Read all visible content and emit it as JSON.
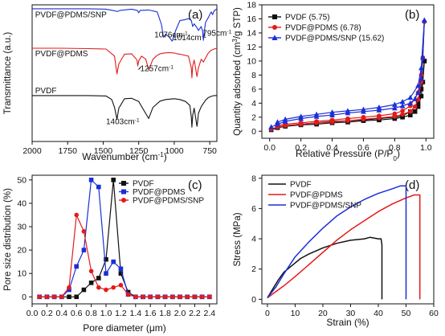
{
  "chart_data": [
    {
      "panel": "(a)",
      "type": "line",
      "xlabel": "Wavenumber (cm⁻¹)",
      "ylabel": "Transmittance (a.u.)",
      "xlim": [
        2000,
        700
      ],
      "x_reversed": true,
      "yticks_shown": false,
      "xticks": [
        2000,
        1750,
        1500,
        1250,
        1000,
        750
      ],
      "series": [
        {
          "name": "PVDF@PDMS/SNP",
          "color": "#1a2fd6",
          "offset": 2.2,
          "label_at": [
            1990,
            2.98
          ],
          "x": [
            2000,
            1800,
            1600,
            1480,
            1420,
            1400,
            1380,
            1300,
            1260,
            1250,
            1240,
            1180,
            1120,
            1090,
            1076,
            1060,
            1040,
            1014,
            990,
            960,
            930,
            900,
            880,
            870,
            860,
            840,
            830,
            810,
            800,
            795,
            790,
            780,
            760,
            740,
            730,
            720,
            710,
            700
          ],
          "y": [
            1.0,
            1.0,
            1.0,
            0.99,
            0.95,
            0.93,
            0.96,
            0.99,
            0.96,
            0.9,
            0.96,
            0.97,
            0.92,
            0.6,
            0.28,
            0.35,
            0.3,
            0.18,
            0.45,
            0.7,
            0.72,
            0.75,
            0.7,
            0.55,
            0.62,
            0.52,
            0.45,
            0.55,
            0.42,
            0.2,
            0.38,
            0.65,
            0.78,
            0.92,
            0.85,
            0.95,
            0.97,
            1.0
          ]
        },
        {
          "name": "PVDF@PDMS",
          "color": "#e41a1a",
          "offset": 1.2,
          "label_at": [
            1990,
            2.0
          ],
          "x": [
            2000,
            1800,
            1600,
            1480,
            1420,
            1403,
            1390,
            1350,
            1300,
            1262,
            1257,
            1250,
            1230,
            1200,
            1180,
            1150,
            1120,
            1100,
            1070,
            1040,
            1000,
            980,
            960,
            900,
            880,
            876,
            870,
            860,
            850,
            840,
            830,
            810,
            795,
            780,
            760,
            740,
            720,
            700
          ],
          "y": [
            1.0,
            1.0,
            0.99,
            0.98,
            0.8,
            0.35,
            0.6,
            0.85,
            0.86,
            0.7,
            0.55,
            0.68,
            0.8,
            0.72,
            0.45,
            0.72,
            0.82,
            0.86,
            0.88,
            0.89,
            0.88,
            0.86,
            0.85,
            0.8,
            0.5,
            0.25,
            0.55,
            0.7,
            0.5,
            0.28,
            0.5,
            0.72,
            0.65,
            0.75,
            0.88,
            0.95,
            0.98,
            1.0
          ]
        },
        {
          "name": "PVDF",
          "color": "#111111",
          "offset": 0.0,
          "label_at": [
            1990,
            1.06
          ],
          "x": [
            2000,
            1800,
            1600,
            1480,
            1440,
            1420,
            1403,
            1390,
            1350,
            1300,
            1250,
            1210,
            1180,
            1150,
            1100,
            1060,
            1000,
            960,
            920,
            890,
            880,
            876,
            870,
            860,
            850,
            840,
            835,
            830,
            810,
            795,
            780,
            760,
            740,
            720,
            700
          ],
          "y": [
            1.0,
            1.0,
            1.0,
            0.99,
            0.9,
            0.7,
            0.4,
            0.68,
            0.92,
            0.93,
            0.85,
            0.6,
            0.42,
            0.7,
            0.86,
            0.9,
            0.92,
            0.9,
            0.85,
            0.75,
            0.45,
            0.2,
            0.5,
            0.68,
            0.45,
            0.22,
            0.35,
            0.55,
            0.72,
            0.8,
            0.88,
            0.95,
            0.98,
            1.0,
            1.0
          ]
        }
      ],
      "annotations": [
        {
          "text": "1076cm⁻¹",
          "x": 1140,
          "y": 2.47
        },
        {
          "text": "1014cm⁻¹",
          "x": 1010,
          "y": 2.4
        },
        {
          "text": "795cm⁻¹",
          "x": 800,
          "y": 2.52
        },
        {
          "text": "1257cm⁻¹",
          "x": 1240,
          "y": 1.62
        },
        {
          "text": "1403cm⁻¹",
          "x": 1480,
          "y": 0.28
        }
      ]
    },
    {
      "panel": "(b)",
      "type": "line",
      "xlabel": "Relative Pressure (P/P₀)",
      "ylabel": "Quantity adsorbed (cm³/g STP)",
      "xlim": [
        -0.05,
        1.05
      ],
      "ylim": [
        -1,
        18
      ],
      "xticks": [
        0.0,
        0.2,
        0.4,
        0.6,
        0.8,
        1.0
      ],
      "yticks": [
        0,
        2,
        4,
        6,
        8,
        10,
        12,
        14,
        16,
        18
      ],
      "legend": "top-left",
      "series": [
        {
          "name": "PVDF (5.75)",
          "color": "#111111",
          "marker": "square",
          "adsorption": {
            "x": [
              0.01,
              0.05,
              0.1,
              0.2,
              0.3,
              0.4,
              0.5,
              0.6,
              0.7,
              0.8,
              0.85,
              0.9,
              0.93,
              0.95,
              0.97,
              0.98,
              0.99
            ],
            "y": [
              0.2,
              0.5,
              0.7,
              0.9,
              1.0,
              1.2,
              1.3,
              1.5,
              1.6,
              1.8,
              2.0,
              2.3,
              2.8,
              3.5,
              5.0,
              7.0,
              10.0
            ]
          },
          "desorption": {
            "x": [
              0.99,
              0.97,
              0.95,
              0.9,
              0.85,
              0.8,
              0.7,
              0.6,
              0.5,
              0.4,
              0.3,
              0.2,
              0.1,
              0.05
            ],
            "y": [
              10.0,
              6.0,
              4.0,
              2.8,
              2.2,
              2.0,
              1.8,
              1.6,
              1.5,
              1.4,
              1.2,
              1.0,
              0.8,
              0.6
            ]
          }
        },
        {
          "name": "PVDF@PDMS (6.78)",
          "color": "#e41a1a",
          "marker": "circle",
          "adsorption": {
            "x": [
              0.01,
              0.05,
              0.1,
              0.2,
              0.3,
              0.4,
              0.5,
              0.6,
              0.7,
              0.8,
              0.85,
              0.9,
              0.93,
              0.95,
              0.97,
              0.98,
              0.99
            ],
            "y": [
              0.3,
              0.6,
              0.8,
              1.0,
              1.2,
              1.3,
              1.5,
              1.7,
              1.9,
              2.1,
              2.4,
              2.8,
              3.5,
              4.5,
              7.0,
              10.5,
              15.6
            ]
          },
          "desorption": {
            "x": [
              0.99,
              0.97,
              0.95,
              0.9,
              0.85,
              0.8,
              0.7,
              0.6,
              0.5,
              0.4,
              0.3,
              0.2,
              0.1,
              0.05
            ],
            "y": [
              15.6,
              8.0,
              5.5,
              3.6,
              2.9,
              2.5,
              2.2,
              2.0,
              1.8,
              1.6,
              1.4,
              1.2,
              1.0,
              0.8
            ]
          }
        },
        {
          "name": "PVDF@PDMS/SNP (15.62)",
          "color": "#1a2fd6",
          "marker": "triangle",
          "adsorption": {
            "x": [
              0.01,
              0.05,
              0.1,
              0.2,
              0.3,
              0.4,
              0.5,
              0.6,
              0.7,
              0.8,
              0.85,
              0.9,
              0.93,
              0.95,
              0.97,
              0.98,
              0.99
            ],
            "y": [
              0.6,
              1.0,
              1.4,
              1.8,
              2.1,
              2.3,
              2.6,
              2.8,
              3.0,
              3.3,
              3.6,
              4.0,
              4.6,
              5.5,
              7.5,
              10.5,
              15.8
            ]
          },
          "desorption": {
            "x": [
              0.99,
              0.97,
              0.95,
              0.9,
              0.85,
              0.8,
              0.7,
              0.6,
              0.5,
              0.4,
              0.3,
              0.2,
              0.1,
              0.05
            ],
            "y": [
              15.8,
              9.0,
              6.5,
              4.8,
              4.2,
              3.8,
              3.4,
              3.1,
              2.9,
              2.7,
              2.4,
              2.1,
              1.7,
              1.3
            ]
          }
        }
      ]
    },
    {
      "panel": "(c)",
      "type": "line",
      "xlabel": "Pore diameter (μm)",
      "ylabel": "Pore size distribution (%)",
      "xlim": [
        0.0,
        2.5
      ],
      "ylim": [
        -3,
        52
      ],
      "xticks": [
        0.0,
        0.2,
        0.4,
        0.6,
        0.8,
        1.0,
        1.2,
        1.4,
        1.6,
        1.8,
        2.0,
        2.2,
        2.4
      ],
      "yticks": [
        0,
        10,
        20,
        30,
        40,
        50
      ],
      "legend": "top-right",
      "series": [
        {
          "name": "PVDF",
          "color": "#111111",
          "marker": "square",
          "x": [
            0.1,
            0.2,
            0.3,
            0.4,
            0.5,
            0.6,
            0.7,
            0.8,
            0.9,
            1.0,
            1.1,
            1.2,
            1.3,
            1.4,
            1.5,
            1.6,
            1.7,
            1.8,
            1.9,
            2.0,
            2.1,
            2.2,
            2.3,
            2.4
          ],
          "y": [
            0,
            0,
            0,
            0,
            0,
            0,
            3,
            6,
            8,
            16,
            50,
            10,
            2,
            0,
            0,
            0,
            0,
            0,
            0,
            0,
            0,
            0,
            0,
            0
          ]
        },
        {
          "name": "PVDF@PDMS",
          "color": "#1a2fd6",
          "marker": "square",
          "x": [
            0.1,
            0.2,
            0.3,
            0.4,
            0.5,
            0.6,
            0.7,
            0.8,
            0.9,
            1.0,
            1.1,
            1.2,
            1.3,
            1.4,
            1.5,
            1.6,
            1.7,
            1.8,
            1.9,
            2.0,
            2.1,
            2.2,
            2.3,
            2.4
          ],
          "y": [
            0,
            0,
            0,
            0,
            3,
            13,
            20,
            50,
            47,
            10,
            15,
            12,
            1,
            0,
            0,
            0,
            0,
            0,
            0,
            0,
            0,
            0,
            0,
            0
          ]
        },
        {
          "name": "PVDF@PDMS/SNP",
          "color": "#e41a1a",
          "marker": "circle",
          "x": [
            0.1,
            0.2,
            0.3,
            0.4,
            0.5,
            0.6,
            0.7,
            0.8,
            0.9,
            1.0,
            1.1,
            1.2,
            1.3,
            1.4,
            1.5,
            1.6,
            1.7,
            1.8,
            1.9,
            2.0,
            2.1,
            2.2,
            2.3,
            2.4
          ],
          "y": [
            0,
            0,
            0,
            0,
            4,
            35,
            28,
            11,
            4,
            3,
            4,
            5,
            1,
            0,
            0,
            0,
            0,
            0,
            0,
            0,
            0,
            0,
            0,
            0
          ]
        }
      ]
    },
    {
      "panel": "(d)",
      "type": "line",
      "xlabel": "Strain (%)",
      "ylabel": "Stress (MPa)",
      "xlim": [
        -2,
        60
      ],
      "ylim": [
        -0.3,
        8.2
      ],
      "xticks": [
        0,
        10,
        20,
        30,
        40,
        50,
        60
      ],
      "yticks": [
        0,
        2,
        4,
        6,
        8
      ],
      "legend": "top-left",
      "series": [
        {
          "name": "PVDF",
          "color": "#111111",
          "x": [
            0,
            2,
            4,
            6,
            8,
            10,
            12,
            15,
            20,
            25,
            30,
            35,
            37,
            40,
            41,
            41.3,
            41.3
          ],
          "y": [
            0.1,
            0.7,
            1.3,
            1.8,
            2.1,
            2.4,
            2.7,
            3.0,
            3.4,
            3.7,
            3.9,
            4.0,
            4.1,
            4.0,
            4.0,
            3.6,
            0.0
          ]
        },
        {
          "name": "PVDF@PDMS",
          "color": "#e41a1a",
          "x": [
            0,
            3,
            6,
            10,
            15,
            20,
            25,
            30,
            35,
            40,
            45,
            50,
            53,
            54,
            55,
            55
          ],
          "y": [
            0.1,
            0.5,
            0.9,
            1.5,
            2.3,
            3.1,
            3.9,
            4.6,
            5.2,
            5.8,
            6.3,
            6.7,
            6.9,
            6.9,
            6.9,
            0.0
          ]
        },
        {
          "name": "PVDF@PDMS/SNP",
          "color": "#1a2fd6",
          "x": [
            0,
            3,
            6,
            10,
            15,
            20,
            25,
            30,
            35,
            40,
            45,
            48,
            50,
            50
          ],
          "y": [
            0.1,
            0.8,
            1.7,
            2.8,
            3.8,
            4.7,
            5.5,
            6.1,
            6.6,
            7.0,
            7.3,
            7.5,
            7.5,
            0.0
          ]
        }
      ]
    }
  ]
}
